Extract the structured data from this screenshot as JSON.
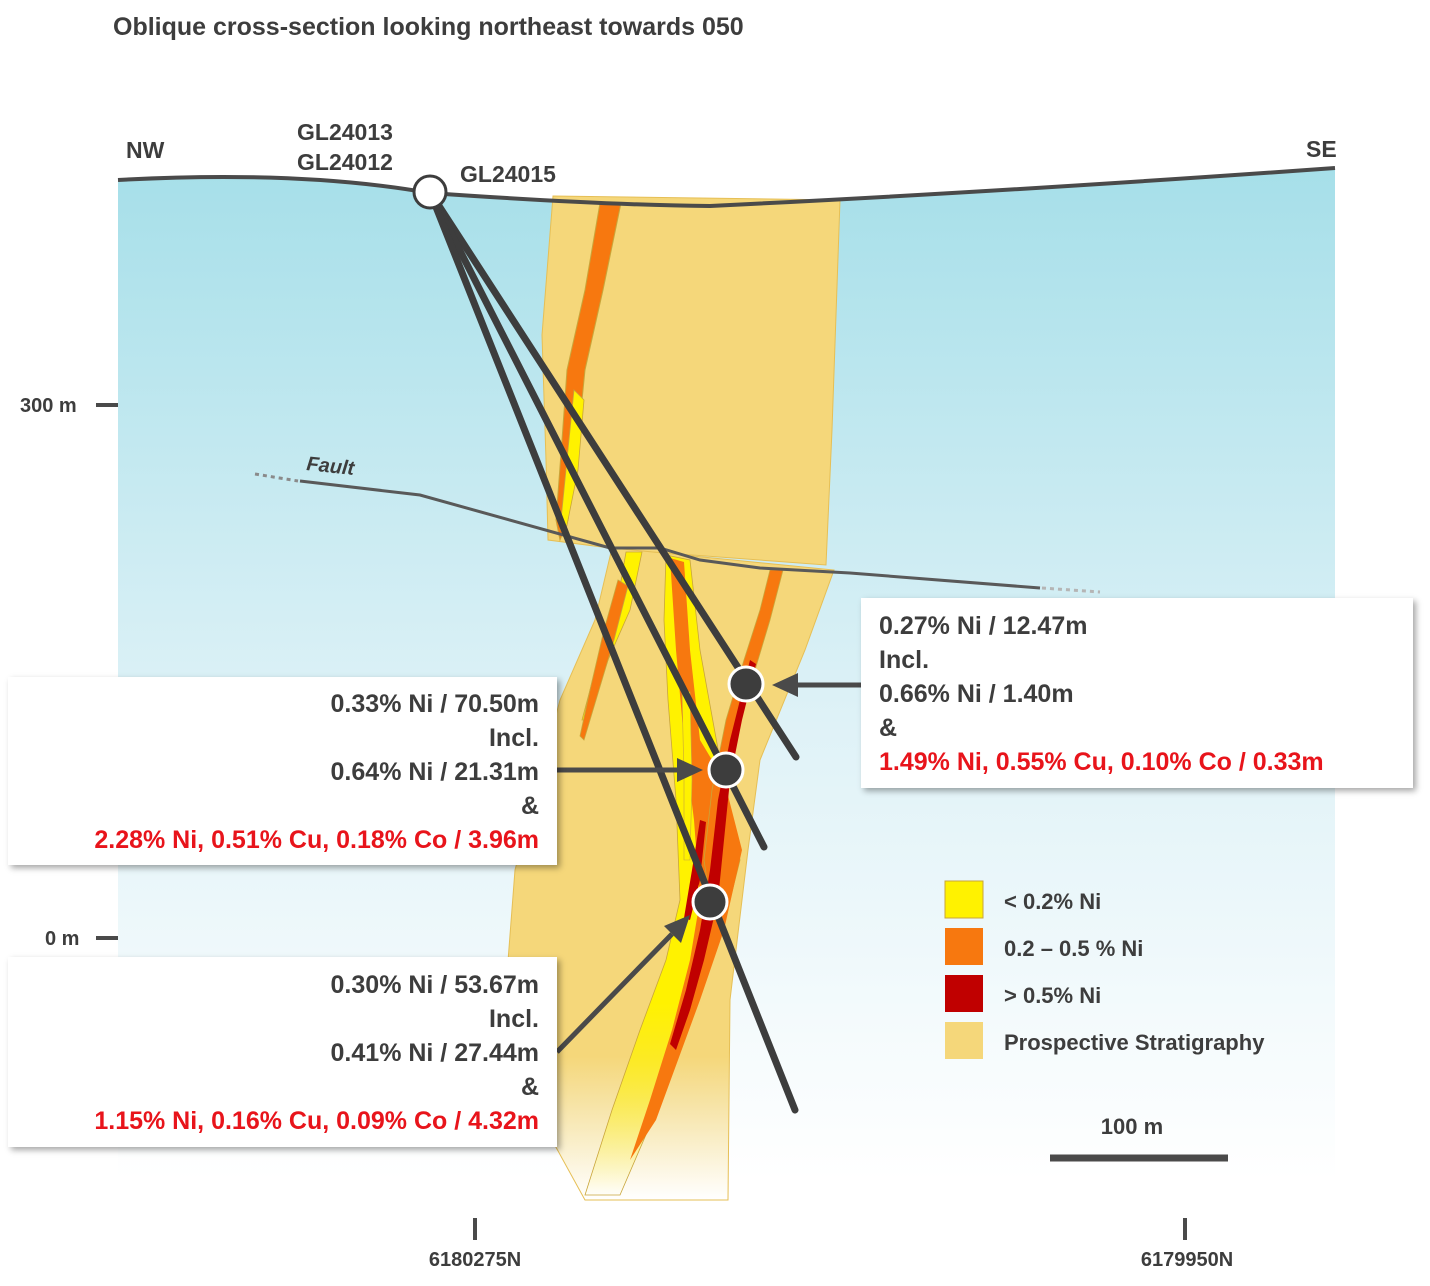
{
  "title": "Oblique cross-section looking northeast towards 050",
  "orientation": {
    "left": "NW",
    "right": "SE"
  },
  "collar_labels": {
    "line1": "GL24013",
    "line2": "GL24012",
    "line3": "GL24015"
  },
  "fault_label": "Fault",
  "elevation_ticks": [
    {
      "label": "300 m"
    },
    {
      "label": "0 m"
    }
  ],
  "northing_ticks": [
    {
      "label": "6180275N"
    },
    {
      "label": "6179950N"
    }
  ],
  "scale_bar": {
    "label": "100 m"
  },
  "legend": [
    {
      "label": "< 0.2% Ni",
      "color": "#fff200"
    },
    {
      "label": "0.2 – 0.5 % Ni",
      "color": "#f7780f"
    },
    {
      "label": "> 0.5% Ni",
      "color": "#c00000"
    },
    {
      "label": "Prospective Stratigraphy",
      "color": "#f5d77a"
    }
  ],
  "intercepts": {
    "a": {
      "line1": "0.27% Ni / 12.47m",
      "line2": "Incl.",
      "line3": "0.66% Ni / 1.40m",
      "line4": "&",
      "line5": "1.49% Ni, 0.55% Cu, 0.10% Co / 0.33m"
    },
    "b": {
      "line1": "0.33% Ni / 70.50m",
      "line2": "Incl.",
      "line3": "0.64% Ni / 21.31m",
      "line4": "&",
      "line5": "2.28% Ni, 0.51% Cu, 0.18% Co / 3.96m"
    },
    "c": {
      "line1": "0.30% Ni / 53.67m",
      "line2": "Incl.",
      "line3": "0.41% Ni / 27.44m",
      "line4": "&",
      "line5": "1.15% Ni, 0.16% Cu, 0.09% Co / 4.32m"
    }
  },
  "colors": {
    "sky_top": "#a6dfe9",
    "sky_bottom": "#ffffff",
    "outline": "#4a4a4a",
    "highlight_red": "#e8141b"
  }
}
